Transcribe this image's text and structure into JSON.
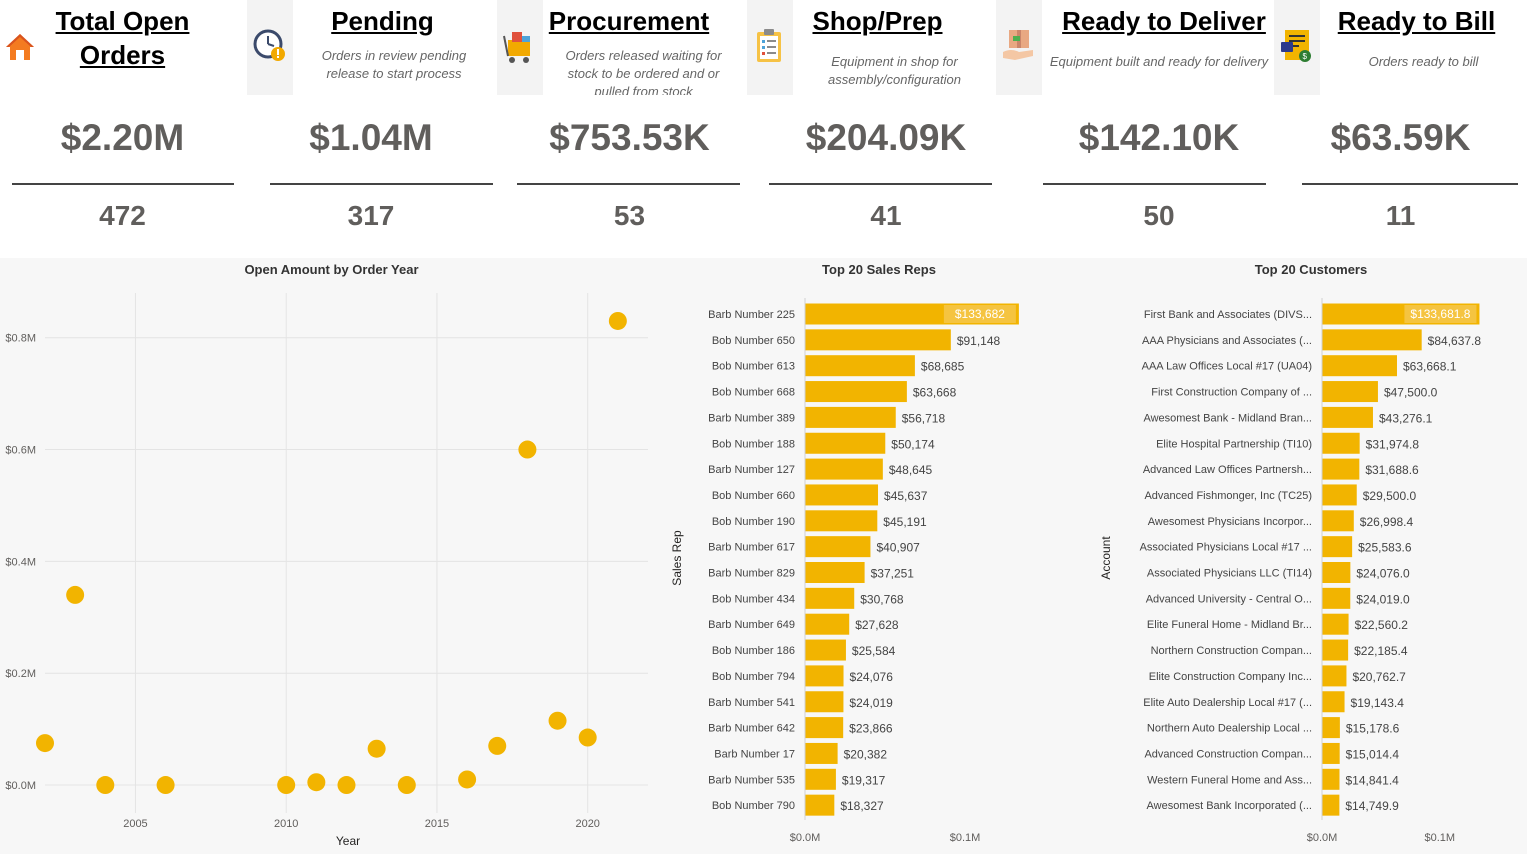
{
  "cards": [
    {
      "title": "Total Open Orders",
      "title_lines": [
        "Total Open ",
        "Orders"
      ],
      "desc": "",
      "amount": "$2.20M",
      "count": "472",
      "icon": "home-icon"
    },
    {
      "title": "Pending",
      "desc": "Orders in review pending release to start process",
      "amount": "$1.04M",
      "count": "317",
      "icon": "clock-warning-icon"
    },
    {
      "title": "Procurement",
      "desc": "Orders released waiting for stock to be ordered and or pulled from stock",
      "amount": "$753.53K",
      "count": "53",
      "icon": "cart-icon"
    },
    {
      "title": "Shop/Prep",
      "desc": "Equipment in shop for assembly/configuration",
      "amount": "$204.09K",
      "count": "41",
      "icon": "clipboard-checklist-icon"
    },
    {
      "title": "Ready to Deliver",
      "desc": "Equipment built and ready for  delivery",
      "amount": "$142.10K",
      "count": "50",
      "icon": "package-hand-icon"
    },
    {
      "title": "Ready to Bill",
      "desc": "Orders ready to bill",
      "amount": "$63.59K",
      "count": "11",
      "icon": "invoice-icon"
    }
  ],
  "colors": {
    "accent": "#F2B400",
    "text_dark": "#000000",
    "text_grey": "#605e5c"
  },
  "chart_data": [
    {
      "type": "scatter",
      "title": "Open Amount by Order Year",
      "xlabel": "Year",
      "ylabel": "",
      "xlim": [
        2002,
        2022
      ],
      "ylim": [
        -0.05,
        0.88
      ],
      "x_ticks": [
        2005,
        2010,
        2015,
        2020
      ],
      "x_tick_labels": [
        "2005",
        "2010",
        "2015",
        "2020"
      ],
      "y_ticks": [
        0.0,
        0.2,
        0.4,
        0.6,
        0.8
      ],
      "y_tick_labels": [
        "$0.0M",
        "$0.2M",
        "$0.4M",
        "$0.6M",
        "$0.8M"
      ],
      "grid": true,
      "x": [
        2002,
        2003,
        2004,
        2006,
        2010,
        2011,
        2012,
        2013,
        2014,
        2016,
        2017,
        2018,
        2019,
        2020,
        2021
      ],
      "y": [
        0.075,
        0.34,
        0.0,
        0.0,
        0.0,
        0.005,
        0.0,
        0.065,
        0.0,
        0.01,
        0.07,
        0.6,
        0.115,
        0.085,
        0.83
      ]
    },
    {
      "type": "bar",
      "orientation": "horizontal",
      "title": "Top 20 Sales Reps",
      "ylabel": "Sales Rep",
      "xlim": [
        0,
        0.135
      ],
      "x_ticks": [
        0,
        0.1
      ],
      "x_tick_labels": [
        "$0.0M",
        "$0.1M"
      ],
      "categories": [
        "Barb Number 225",
        "Bob Number 650",
        "Bob Number 613",
        "Bob Number 668",
        "Barb Number 389",
        "Bob Number 188",
        "Barb Number 127",
        "Bob Number 660",
        "Bob Number 190",
        "Barb Number 617",
        "Barb Number 829",
        "Bob Number 434",
        "Barb Number 649",
        "Bob Number 186",
        "Bob Number 794",
        "Barb Number 541",
        "Barb Number 642",
        "Barb Number 17",
        "Barb Number 535",
        "Bob Number 790"
      ],
      "values": [
        133682,
        91148,
        68685,
        63668,
        56718,
        50174,
        48645,
        45637,
        45191,
        40907,
        37251,
        30768,
        27628,
        25584,
        24076,
        24019,
        23866,
        20382,
        19317,
        18327
      ],
      "data_labels": [
        "$133,682",
        "$91,148",
        "$68,685",
        "$63,668",
        "$56,718",
        "$50,174",
        "$48,645",
        "$45,637",
        "$45,191",
        "$40,907",
        "$37,251",
        "$30,768",
        "$27,628",
        "$25,584",
        "$24,076",
        "$24,019",
        "$23,866",
        "$20,382",
        "$19,317",
        "$18,327"
      ]
    },
    {
      "type": "bar",
      "orientation": "horizontal",
      "title": "Top 20 Customers",
      "ylabel": "Account",
      "xlim": [
        0,
        0.135
      ],
      "x_ticks": [
        0,
        0.1
      ],
      "x_tick_labels": [
        "$0.0M",
        "$0.1M"
      ],
      "categories": [
        "First Bank and Associates (DIVS...",
        "AAA Physicians and Associates (...",
        "AAA Law Offices Local #17 (UA04)",
        "First Construction Company of ...",
        "Awesomest Bank - Midland Bran...",
        "Elite Hospital Partnership (TI10)",
        "Advanced Law Offices Partnersh...",
        "Advanced Fishmonger, Inc (TC25)",
        "Awesomest Physicians Incorpor...",
        "Associated Physicians Local #17 ...",
        "Associated Physicians LLC (TI14)",
        "Advanced University - Central O...",
        "Elite Funeral Home - Midland Br...",
        "Northern Construction Compan...",
        "Elite Construction Company Inc...",
        "Elite Auto Dealership Local #17 (...",
        "Northern Auto Dealership Local ...",
        "Advanced Construction Compan...",
        "Western Funeral Home and Ass...",
        "Awesomest Bank Incorporated (..."
      ],
      "values": [
        133681.8,
        84637.8,
        63668.1,
        47500.0,
        43276.1,
        31974.8,
        31688.6,
        29500.0,
        26998.4,
        25583.6,
        24076.0,
        24019.0,
        22560.2,
        22185.4,
        20762.7,
        19143.4,
        15178.6,
        15014.4,
        14841.4,
        14749.9
      ],
      "data_labels": [
        "$133,681.8",
        "$84,637.8",
        "$63,668.1",
        "$47,500.0",
        "$43,276.1",
        "$31,974.8",
        "$31,688.6",
        "$29,500.0",
        "$26,998.4",
        "$25,583.6",
        "$24,076.0",
        "$24,019.0",
        "$22,560.2",
        "$22,185.4",
        "$20,762.7",
        "$19,143.4",
        "$15,178.6",
        "$15,014.4",
        "$14,841.4",
        "$14,749.9"
      ]
    }
  ]
}
